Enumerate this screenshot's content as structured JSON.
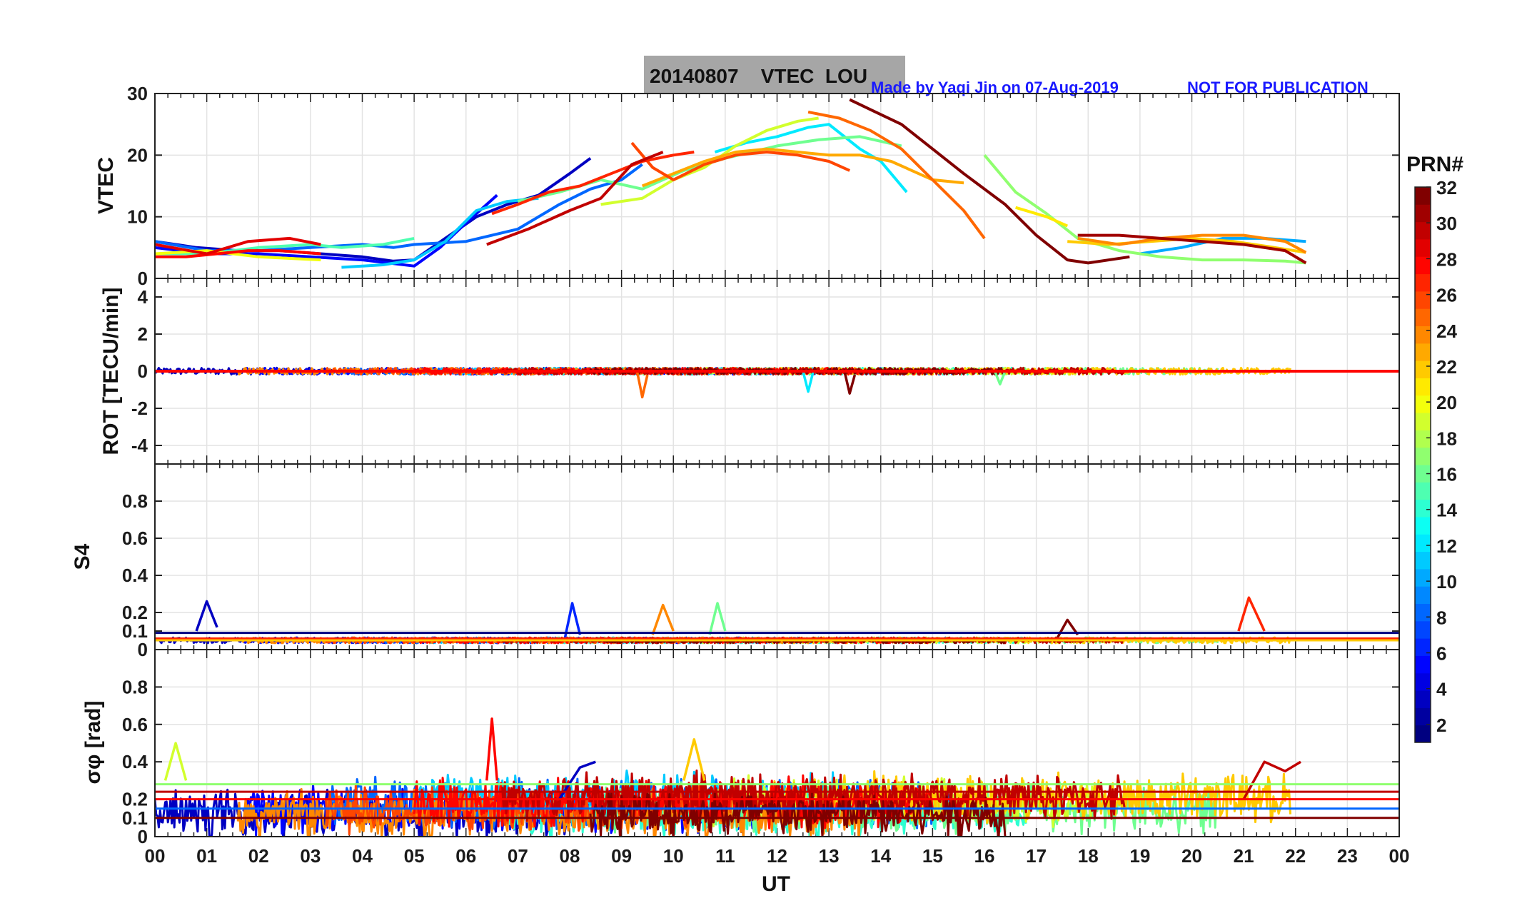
{
  "chart_data": {
    "type": "line",
    "title": "20140807    VTEC  LOU",
    "credit": "Made by Yaqi Jin on 07-Aug-2019",
    "disclaimer": "NOT FOR PUBLICATION",
    "xlabel": "UT",
    "x_ticks": [
      "00",
      "01",
      "02",
      "03",
      "04",
      "05",
      "06",
      "07",
      "08",
      "09",
      "10",
      "11",
      "12",
      "13",
      "14",
      "15",
      "16",
      "17",
      "18",
      "19",
      "20",
      "21",
      "22",
      "23",
      "00"
    ],
    "xlim": [
      0,
      24
    ],
    "colorbar": {
      "label": "PRN#",
      "range": [
        1,
        32
      ],
      "ticks": [
        "2",
        "4",
        "6",
        "8",
        "10",
        "12",
        "14",
        "16",
        "18",
        "20",
        "22",
        "24",
        "26",
        "28",
        "30",
        "32"
      ]
    },
    "panels": [
      {
        "ylabel": "VTEC",
        "ylim": [
          0,
          30
        ],
        "yticks": [
          "0",
          "10",
          "20",
          "30"
        ],
        "series": [
          {
            "prn": 3,
            "x": [
              0.0,
              0.8,
              1.6,
              2.4,
              3.2,
              4.0,
              4.6,
              5.0,
              5.6,
              6.2,
              6.8,
              7.4,
              8.0,
              8.4
            ],
            "y": [
              6.0,
              5.0,
              4.5,
              4.5,
              4.0,
              3.5,
              2.8,
              3.0,
              6.5,
              10.0,
              12.0,
              13.5,
              17.0,
              19.5
            ]
          },
          {
            "prn": 5,
            "x": [
              0.0,
              1.0,
              2.0,
              3.0,
              4.0,
              5.0,
              5.5,
              6.0,
              6.6
            ],
            "y": [
              5.0,
              4.0,
              4.0,
              3.5,
              3.0,
              2.0,
              5.0,
              9.0,
              13.5
            ]
          },
          {
            "prn": 8,
            "x": [
              0.0,
              1.0,
              2.0,
              3.0,
              4.0,
              4.6,
              5.0,
              6.0,
              7.0,
              7.8,
              8.4,
              9.0,
              9.4
            ],
            "y": [
              6.0,
              4.5,
              4.5,
              5.0,
              5.5,
              5.0,
              5.5,
              6.0,
              8.0,
              12.0,
              14.5,
              16.0,
              18.5
            ]
          },
          {
            "prn": 10,
            "x": [
              19.0,
              19.8,
              20.6,
              21.4,
              22.2
            ],
            "y": [
              4.0,
              5.0,
              6.5,
              6.5,
              6.0
            ]
          },
          {
            "prn": 11,
            "x": [
              3.6,
              4.4,
              5.0,
              5.6,
              6.2,
              6.8,
              7.4
            ],
            "y": [
              1.8,
              2.2,
              3.0,
              6.0,
              11.0,
              12.5,
              13.0
            ]
          },
          {
            "prn": 12,
            "x": [
              10.8,
              11.4,
              12.0,
              12.6,
              13.0,
              13.6,
              14.0,
              14.5
            ],
            "y": [
              20.5,
              22.0,
              23.0,
              24.5,
              25.0,
              21.0,
              19.0,
              14.0
            ]
          },
          {
            "prn": 15,
            "x": [
              0.0,
              1.0,
              2.0,
              3.0,
              3.6,
              4.4,
              5.0
            ],
            "y": [
              4.0,
              4.0,
              5.0,
              5.5,
              5.0,
              5.5,
              6.5
            ]
          },
          {
            "prn": 16,
            "x": [
              7.0,
              7.8,
              8.6,
              9.4,
              10.2,
              11.0,
              12.0,
              12.8,
              13.6,
              14.4
            ],
            "y": [
              12.5,
              14.0,
              16.0,
              14.5,
              17.5,
              19.5,
              21.5,
              22.5,
              23.0,
              21.5
            ]
          },
          {
            "prn": 17,
            "x": [
              16.0,
              16.6,
              17.2,
              17.8,
              18.6,
              19.4,
              20.2,
              21.0,
              21.8,
              22.2
            ],
            "y": [
              20.0,
              14.0,
              10.5,
              6.5,
              4.5,
              3.5,
              3.0,
              3.0,
              2.8,
              2.5
            ]
          },
          {
            "prn": 19,
            "x": [
              8.6,
              9.4,
              10.0,
              10.6,
              11.2,
              11.8,
              12.4,
              12.8
            ],
            "y": [
              12.0,
              13.0,
              16.0,
              18.0,
              21.5,
              24.0,
              25.5,
              26.0
            ]
          },
          {
            "prn": 20,
            "x": [
              0.0,
              1.0,
              2.0,
              3.2
            ],
            "y": [
              4.0,
              4.5,
              3.5,
              3.0
            ]
          },
          {
            "prn": 21,
            "x": [
              16.6,
              17.2,
              17.6
            ],
            "y": [
              11.5,
              10.0,
              8.5
            ]
          },
          {
            "prn": 22,
            "x": [
              17.6,
              18.4,
              19.2,
              20.0,
              20.8,
              21.6,
              22.2
            ],
            "y": [
              6.0,
              5.5,
              6.0,
              6.5,
              6.0,
              5.0,
              4.2
            ]
          },
          {
            "prn": 23,
            "x": [
              9.4,
              10.0,
              10.6,
              11.2,
              11.8,
              12.4,
              13.0,
              13.6,
              14.2,
              15.0,
              15.6
            ],
            "y": [
              15.0,
              17.0,
              19.0,
              20.5,
              21.0,
              20.5,
              20.0,
              20.0,
              19.0,
              16.0,
              15.5
            ]
          },
          {
            "prn": 24,
            "x": [
              17.8,
              18.6,
              19.4,
              20.2,
              21.0,
              21.8,
              22.2
            ],
            "y": [
              6.5,
              5.5,
              6.5,
              7.0,
              7.0,
              6.0,
              4.2
            ]
          },
          {
            "prn": 25,
            "x": [
              12.6,
              13.2,
              13.8,
              14.4,
              15.0,
              15.6,
              16.0
            ],
            "y": [
              27.0,
              26.0,
              24.0,
              21.0,
              16.0,
              11.0,
              6.5
            ]
          },
          {
            "prn": 26,
            "x": [
              9.2,
              9.6,
              10.0,
              10.6,
              11.2,
              11.8,
              12.4,
              13.0,
              13.4
            ],
            "y": [
              22.0,
              18.0,
              16.0,
              18.5,
              20.0,
              20.5,
              20.0,
              19.0,
              17.5
            ]
          },
          {
            "prn": 27,
            "x": [
              6.5,
              7.0,
              7.6,
              8.2,
              8.8,
              9.4,
              10.0,
              10.4
            ],
            "y": [
              10.5,
              12.0,
              14.0,
              15.0,
              17.0,
              19.0,
              20.0,
              20.5
            ]
          },
          {
            "prn": 28,
            "x": [
              0.0,
              0.6,
              1.2,
              1.8,
              2.4,
              3.2
            ],
            "y": [
              3.5,
              3.5,
              4.0,
              4.5,
              4.5,
              4.0
            ]
          },
          {
            "prn": 29,
            "x": [
              0.0,
              1.0,
              1.8,
              2.6,
              3.2
            ],
            "y": [
              5.5,
              4.0,
              6.0,
              6.5,
              5.5
            ]
          },
          {
            "prn": 30,
            "x": [
              6.4,
              7.2,
              8.0,
              8.6,
              9.2,
              9.8
            ],
            "y": [
              5.5,
              8.0,
              11.0,
              13.0,
              18.5,
              20.5
            ]
          },
          {
            "prn": 31,
            "x": [
              17.8,
              18.6,
              19.4,
              20.2,
              21.0,
              21.8,
              22.2
            ],
            "y": [
              7.0,
              7.0,
              6.5,
              6.0,
              5.5,
              4.5,
              2.5
            ]
          },
          {
            "prn": 32,
            "x": [
              13.4,
              13.9,
              14.4,
              15.0,
              15.6,
              16.4,
              17.0,
              17.6,
              18.0,
              18.8
            ],
            "y": [
              29.0,
              27.0,
              25.0,
              21.0,
              17.0,
              12.0,
              7.0,
              3.0,
              2.5,
              3.5
            ]
          }
        ]
      },
      {
        "ylabel": "ROT [TECU/min]",
        "ylim": [
          -5,
          5
        ],
        "yticks": [
          "-4",
          "-2",
          "0",
          "2",
          "4"
        ],
        "series": [
          {
            "prn": 25,
            "x": [
              9.3,
              9.4,
              9.5
            ],
            "y": [
              0.0,
              -1.4,
              -0.2
            ]
          },
          {
            "prn": 12,
            "x": [
              12.5,
              12.6,
              12.7
            ],
            "y": [
              0.0,
              -1.1,
              0.0
            ]
          },
          {
            "prn": 32,
            "x": [
              13.3,
              13.4,
              13.5
            ],
            "y": [
              0.0,
              -1.2,
              -0.2
            ]
          },
          {
            "prn": 16,
            "x": [
              16.2,
              16.3,
              16.4
            ],
            "y": [
              0.0,
              -0.7,
              0.0
            ]
          }
        ]
      },
      {
        "ylabel": "S4",
        "ylim": [
          0,
          1
        ],
        "yticks": [
          "0",
          "0.1",
          "0.2",
          "0.4",
          "0.6",
          "0.8"
        ],
        "series": [
          {
            "prn": 3,
            "x": [
              0.8,
              1.0,
              1.2
            ],
            "y": [
              0.1,
              0.26,
              0.12
            ]
          },
          {
            "prn": 6,
            "x": [
              7.9,
              8.05,
              8.2
            ],
            "y": [
              0.05,
              0.25,
              0.08
            ]
          },
          {
            "prn": 24,
            "x": [
              9.6,
              9.8,
              10.0
            ],
            "y": [
              0.08,
              0.24,
              0.1
            ]
          },
          {
            "prn": 16,
            "x": [
              10.7,
              10.85,
              11.0
            ],
            "y": [
              0.08,
              0.25,
              0.1
            ]
          },
          {
            "prn": 27,
            "x": [
              20.9,
              21.1,
              21.4
            ],
            "y": [
              0.1,
              0.28,
              0.1
            ]
          },
          {
            "prn": 32,
            "x": [
              17.4,
              17.6,
              17.8
            ],
            "y": [
              0.06,
              0.16,
              0.08
            ]
          }
        ]
      },
      {
        "ylabel": "σφ [rad]",
        "ylim": [
          0,
          1
        ],
        "yticks": [
          "0",
          "0.1",
          "0.2",
          "0.4",
          "0.6",
          "0.8"
        ],
        "series": [
          {
            "prn": 19,
            "x": [
              0.2,
              0.4,
              0.6
            ],
            "y": [
              0.3,
              0.5,
              0.3
            ]
          },
          {
            "prn": 28,
            "x": [
              6.4,
              6.5,
              6.6
            ],
            "y": [
              0.3,
              0.63,
              0.3
            ]
          },
          {
            "prn": 22,
            "x": [
              10.2,
              10.4,
              10.6
            ],
            "y": [
              0.3,
              0.52,
              0.3
            ]
          },
          {
            "prn": 3,
            "x": [
              7.8,
              8.2,
              8.5
            ],
            "y": [
              0.2,
              0.37,
              0.4
            ]
          },
          {
            "prn": 30,
            "x": [
              21.0,
              21.4,
              21.8,
              22.1
            ],
            "y": [
              0.2,
              0.4,
              0.35,
              0.4
            ]
          }
        ]
      }
    ]
  }
}
